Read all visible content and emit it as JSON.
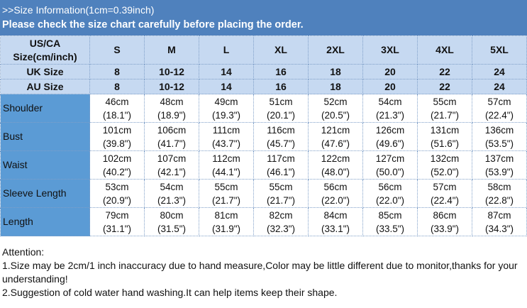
{
  "title": {
    "line1": ">>Size Information(1cm=0.39inch)",
    "line2": "Please check the size chart carefully before placing the order."
  },
  "colors": {
    "title_band": "#4f81bd",
    "header_cells": "#c6d9f1",
    "label_cells": "#5b9bd5"
  },
  "header": {
    "label": "US/CA Size(cm/inch)",
    "sizes": [
      "S",
      "M",
      "L",
      "XL",
      "2XL",
      "3XL",
      "4XL",
      "5XL"
    ]
  },
  "uk": {
    "label": "UK Size",
    "values": [
      "8",
      "10-12",
      "14",
      "16",
      "18",
      "20",
      "22",
      "24"
    ]
  },
  "au": {
    "label": "AU Size",
    "values": [
      "8",
      "10-12",
      "14",
      "16",
      "18",
      "20",
      "22",
      "24"
    ]
  },
  "rows": [
    {
      "label": "Shoulder",
      "cm": [
        "46cm",
        "48cm",
        "49cm",
        "51cm",
        "52cm",
        "54cm",
        "55cm",
        "57cm"
      ],
      "inch": [
        "(18.1\")",
        "(18.9\")",
        "(19.3\")",
        "(20.1\")",
        "(20.5\")",
        "(21.3\")",
        "(21.7\")",
        "(22.4\")"
      ]
    },
    {
      "label": "Bust",
      "cm": [
        "101cm",
        "106cm",
        "111cm",
        "116cm",
        "121cm",
        "126cm",
        "131cm",
        "136cm"
      ],
      "inch": [
        "(39.8\")",
        "(41.7\")",
        "(43.7\")",
        "(45.7\")",
        "(47.6\")",
        "(49.6\")",
        "(51.6\")",
        "(53.5\")"
      ]
    },
    {
      "label": "Waist",
      "cm": [
        "102cm",
        "107cm",
        "112cm",
        "117cm",
        "122cm",
        "127cm",
        "132cm",
        "137cm"
      ],
      "inch": [
        "(40.2\")",
        "(42.1\")",
        "(44.1\")",
        "(46.1\")",
        "(48.0\")",
        "(50.0\")",
        "(52.0\")",
        "(53.9\")"
      ]
    },
    {
      "label": "Sleeve Length",
      "cm": [
        "53cm",
        "54cm",
        "55cm",
        "55cm",
        "56cm",
        "56cm",
        "57cm",
        "58cm"
      ],
      "inch": [
        "(20.9\")",
        "(21.3\")",
        "(21.7\")",
        "(21.7\")",
        "(22.0\")",
        "(22.0\")",
        "(22.4\")",
        "(22.8\")"
      ]
    },
    {
      "label": "Length",
      "cm": [
        "79cm",
        "80cm",
        "81cm",
        "82cm",
        "84cm",
        "85cm",
        "86cm",
        "87cm"
      ],
      "inch": [
        "(31.1\")",
        "(31.5\")",
        "(31.9\")",
        "(32.3\")",
        "(33.1\")",
        "(33.5\")",
        "(33.9\")",
        "(34.3\")"
      ]
    }
  ],
  "attention": {
    "heading": "Attention:",
    "note1": "1.Size may be 2cm/1 inch inaccuracy due to hand measure,Color may be little different due to monitor,thanks for your understanding!",
    "note2": "2.Suggestion of cold water hand washing.It can help items keep their shape."
  }
}
